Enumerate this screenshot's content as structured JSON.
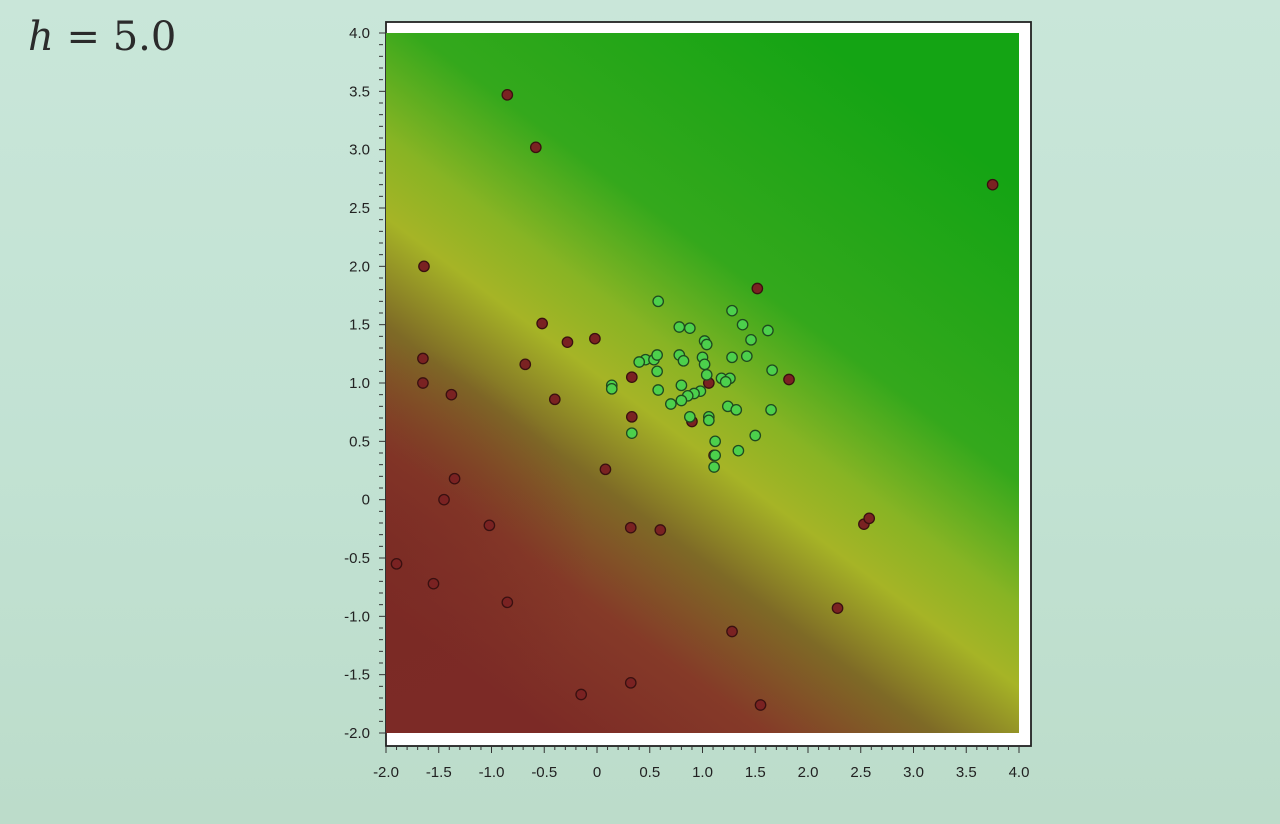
{
  "slide": {
    "title_var": "h",
    "title_rest": " = 5.0"
  },
  "chart_data": {
    "type": "scatter",
    "title": "",
    "xlabel": "",
    "ylabel": "",
    "xlim": [
      -2.0,
      4.0
    ],
    "ylim": [
      -2.0,
      4.0
    ],
    "xticks": [
      "-2.0",
      "-1.5",
      "-1.0",
      "-0.5",
      "0",
      "0.5",
      "1.0",
      "1.5",
      "2.0",
      "2.5",
      "3.0",
      "3.5",
      "4.0"
    ],
    "yticks": [
      "-2.0",
      "-1.5",
      "-1.0",
      "-0.5",
      "0",
      "0.5",
      "1.0",
      "1.5",
      "2.0",
      "2.5",
      "3.0",
      "3.5",
      "4.0"
    ],
    "background": "decision-surface gradient: green (upper right) to yellow band to red (lower left)",
    "colors": {
      "red_class": "#7a2222",
      "green_class": "#4cd04c",
      "surface_green": "#18a818",
      "surface_yellow": "#a6b824",
      "surface_red": "#8a2e2a"
    },
    "series": [
      {
        "color": "#7a2222",
        "points": [
          [
            -0.85,
            3.47
          ],
          [
            -0.58,
            3.02
          ],
          [
            3.75,
            2.7
          ],
          [
            -1.64,
            2.0
          ],
          [
            1.52,
            1.81
          ],
          [
            -0.52,
            1.51
          ],
          [
            -0.28,
            1.35
          ],
          [
            -0.02,
            1.38
          ],
          [
            -0.68,
            1.16
          ],
          [
            -1.65,
            1.21
          ],
          [
            -1.65,
            1.0
          ],
          [
            -1.38,
            0.9
          ],
          [
            -0.4,
            0.86
          ],
          [
            0.33,
            1.05
          ],
          [
            1.06,
            1.0
          ],
          [
            1.82,
            1.03
          ],
          [
            0.33,
            0.71
          ],
          [
            0.9,
            0.67
          ],
          [
            1.11,
            0.38
          ],
          [
            0.08,
            0.26
          ],
          [
            -1.35,
            0.18
          ],
          [
            -1.45,
            0.0
          ],
          [
            -1.02,
            -0.22
          ],
          [
            0.32,
            -0.24
          ],
          [
            0.6,
            -0.26
          ],
          [
            2.53,
            -0.21
          ],
          [
            2.58,
            -0.16
          ],
          [
            -1.55,
            -0.72
          ],
          [
            -0.85,
            -0.88
          ],
          [
            2.28,
            -0.93
          ],
          [
            1.28,
            -1.13
          ],
          [
            0.32,
            -1.57
          ],
          [
            -0.15,
            -1.67
          ],
          [
            1.55,
            -1.76
          ],
          [
            -1.9,
            -0.55
          ]
        ]
      },
      {
        "color": "#4cd04c",
        "points": [
          [
            0.58,
            1.7
          ],
          [
            1.28,
            1.62
          ],
          [
            1.38,
            1.5
          ],
          [
            1.62,
            1.45
          ],
          [
            0.78,
            1.48
          ],
          [
            0.88,
            1.47
          ],
          [
            1.02,
            1.36
          ],
          [
            1.46,
            1.37
          ],
          [
            1.04,
            1.33
          ],
          [
            0.46,
            1.2
          ],
          [
            0.54,
            1.2
          ],
          [
            0.57,
            1.24
          ],
          [
            0.78,
            1.24
          ],
          [
            1.0,
            1.22
          ],
          [
            1.28,
            1.22
          ],
          [
            1.42,
            1.23
          ],
          [
            0.4,
            1.18
          ],
          [
            0.82,
            1.19
          ],
          [
            1.02,
            1.16
          ],
          [
            0.57,
            1.1
          ],
          [
            1.66,
            1.11
          ],
          [
            1.04,
            1.07
          ],
          [
            1.18,
            1.04
          ],
          [
            1.26,
            1.04
          ],
          [
            1.22,
            1.01
          ],
          [
            0.8,
            0.98
          ],
          [
            0.14,
            0.98
          ],
          [
            0.14,
            0.95
          ],
          [
            0.58,
            0.94
          ],
          [
            0.98,
            0.93
          ],
          [
            0.92,
            0.91
          ],
          [
            0.86,
            0.89
          ],
          [
            0.8,
            0.85
          ],
          [
            0.7,
            0.82
          ],
          [
            1.24,
            0.8
          ],
          [
            1.32,
            0.77
          ],
          [
            1.65,
            0.77
          ],
          [
            0.88,
            0.71
          ],
          [
            1.06,
            0.71
          ],
          [
            1.06,
            0.68
          ],
          [
            1.5,
            0.55
          ],
          [
            0.33,
            0.57
          ],
          [
            1.12,
            0.5
          ],
          [
            1.34,
            0.42
          ],
          [
            1.12,
            0.38
          ],
          [
            1.11,
            0.28
          ]
        ]
      }
    ]
  }
}
